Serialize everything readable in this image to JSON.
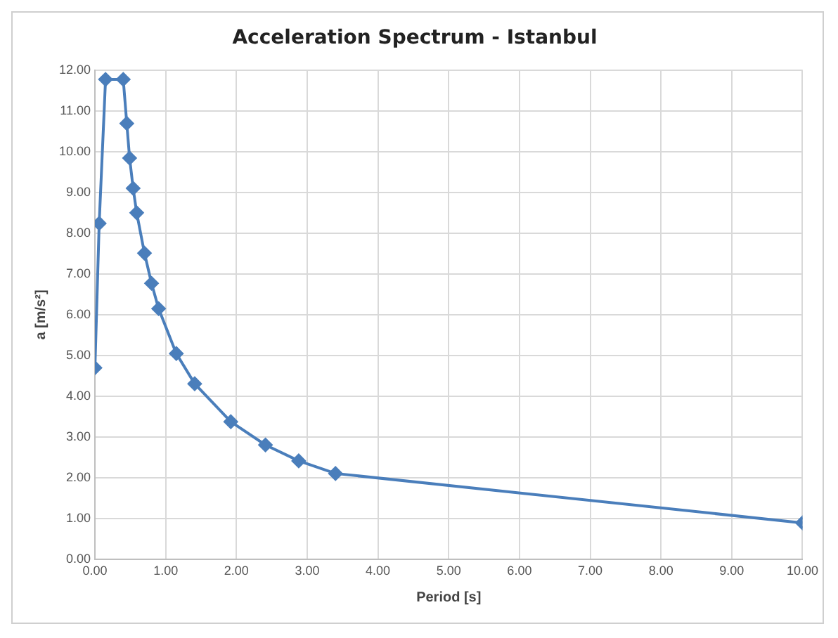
{
  "chart_data": {
    "type": "line",
    "title": "Acceleration Spectrum - Istanbul",
    "xlabel": "Period [s]",
    "ylabel": "a [m/s²]",
    "x": [
      0,
      0.06,
      0.15,
      0.4,
      0.45,
      0.49,
      0.54,
      0.59,
      0.7,
      0.8,
      0.9,
      1.15,
      1.41,
      1.92,
      2.41,
      2.88,
      3.4,
      10
    ],
    "series": [
      {
        "color": "#4a7ebb",
        "values": [
          4.7,
          8.24,
          11.77,
          11.77,
          10.69,
          9.84,
          9.1,
          8.5,
          7.51,
          6.77,
          6.15,
          5.05,
          4.31,
          3.38,
          2.81,
          2.42,
          2.11,
          0.9
        ]
      }
    ],
    "xlim": [
      0,
      10
    ],
    "xticks": [
      {
        "value": 0,
        "label": "0.00"
      },
      {
        "value": 1,
        "label": "1.00"
      },
      {
        "value": 2,
        "label": "2.00"
      },
      {
        "value": 3,
        "label": "3.00"
      },
      {
        "value": 4,
        "label": "4.00"
      },
      {
        "value": 5,
        "label": "5.00"
      },
      {
        "value": 6,
        "label": "6.00"
      },
      {
        "value": 7,
        "label": "7.00"
      },
      {
        "value": 8,
        "label": "8.00"
      },
      {
        "value": 9,
        "label": "9.00"
      },
      {
        "value": 10,
        "label": "10.00"
      }
    ],
    "ylim": [
      0,
      12
    ],
    "yticks": [
      {
        "value": 0,
        "label": "0.00"
      },
      {
        "value": 1,
        "label": "1.00"
      },
      {
        "value": 2,
        "label": "2.00"
      },
      {
        "value": 3,
        "label": "3.00"
      },
      {
        "value": 4,
        "label": "4.00"
      },
      {
        "value": 5,
        "label": "5.00"
      },
      {
        "value": 6,
        "label": "6.00"
      },
      {
        "value": 7,
        "label": "7.00"
      },
      {
        "value": 8,
        "label": "8.00"
      },
      {
        "value": 9,
        "label": "9.00"
      },
      {
        "value": 10,
        "label": "10.00"
      },
      {
        "value": 11,
        "label": "11.00"
      },
      {
        "value": 12,
        "label": "12.00"
      }
    ],
    "grid": true,
    "marker": "diamond",
    "line_style": "solid",
    "legend": false
  }
}
